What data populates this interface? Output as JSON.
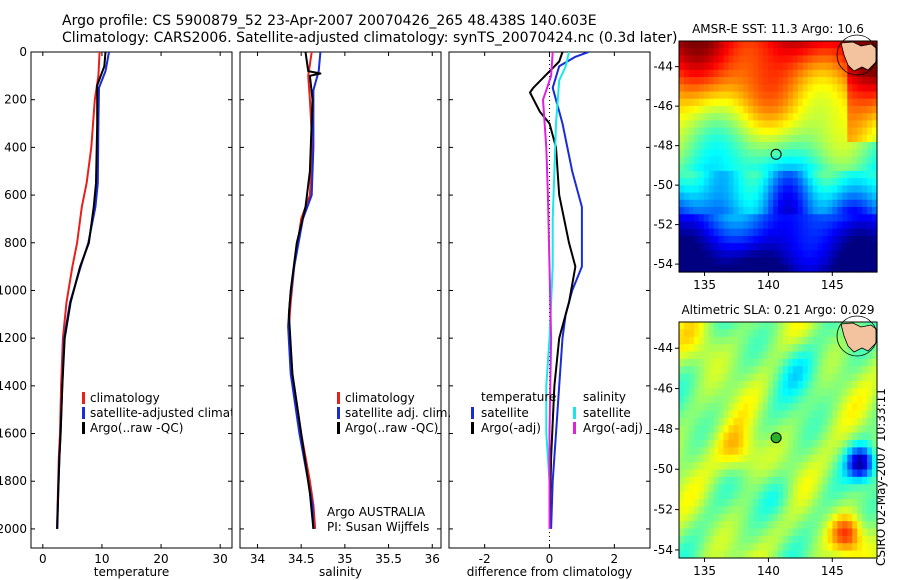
{
  "header": {
    "line1": "Argo profile: CS 5900879_52 23-Apr-2007 20070426_265 48.438S 140.603E",
    "line2": "Climatology: CARS2006. Satellite-adjusted climatology: synTS_20070424.nc (0.3d later)"
  },
  "stamp": "CSIRO 02-May-2007 10:33:11",
  "colors": {
    "red": "#e8201c",
    "blue": "#1a2bd8",
    "black": "#000000",
    "cyan": "#18e8e8",
    "magenta": "#e020e0"
  },
  "chart_data": [
    {
      "type": "line",
      "name": "temperature",
      "xlabel": "temperature",
      "xlim": [
        -2,
        32
      ],
      "ylim": [
        2080,
        0
      ],
      "xticks": [
        0,
        10,
        20,
        30
      ],
      "yticks": [
        0,
        200,
        400,
        600,
        800,
        1000,
        1200,
        1400,
        1600,
        1800,
        2000
      ],
      "series": [
        {
          "name": "climatology",
          "color": "red",
          "x": [
            9.6,
            9.4,
            8.8,
            8.2,
            7.4,
            6.6,
            5.8,
            5.0,
            4.0,
            3.4,
            3.1,
            2.9,
            2.7,
            2.6,
            2.5,
            2.4
          ],
          "y": [
            0,
            100,
            200,
            400,
            550,
            650,
            800,
            900,
            1050,
            1200,
            1400,
            1600,
            1700,
            1800,
            1900,
            2000
          ]
        },
        {
          "name": "satellite-adjusted climatology",
          "color": "blue",
          "x": [
            11.2,
            10.6,
            9.5,
            9.4,
            9.3,
            8.9,
            7.7,
            6.4,
            4.6,
            3.6,
            3.3,
            3.0,
            2.8,
            2.6,
            2.4
          ],
          "y": [
            0,
            80,
            150,
            300,
            550,
            650,
            800,
            900,
            1050,
            1200,
            1400,
            1600,
            1700,
            1850,
            2000
          ]
        },
        {
          "name": "Argo(..raw -QC)",
          "color": "black",
          "x": [
            10.6,
            10.4,
            9.2,
            9.2,
            9.0,
            8.6,
            7.8,
            6.3,
            4.7,
            3.7,
            3.3,
            3.0,
            2.8,
            2.6,
            2.45
          ],
          "y": [
            0,
            60,
            140,
            300,
            550,
            650,
            800,
            900,
            1050,
            1200,
            1400,
            1600,
            1700,
            1850,
            2000
          ]
        }
      ],
      "legend": [
        {
          "label": "climatology",
          "color": "red"
        },
        {
          "label": "satellite-adjusted climatology",
          "color": "blue"
        },
        {
          "label": "Argo(..raw -QC)",
          "color": "black"
        }
      ]
    },
    {
      "type": "line",
      "name": "salinity",
      "xlabel": "salinity",
      "xlim": [
        33.8,
        36.1
      ],
      "ylim": [
        2080,
        0
      ],
      "xticks": [
        34,
        34.5,
        35,
        35.5,
        36
      ],
      "xtick_labels": [
        "34",
        "34.5",
        "35",
        "35.5",
        "36"
      ],
      "series": [
        {
          "name": "climatology",
          "color": "red",
          "x": [
            34.62,
            34.58,
            34.6,
            34.63,
            34.6,
            34.5,
            34.42,
            34.38,
            34.36,
            34.4,
            34.5,
            34.6,
            34.64,
            34.66
          ],
          "y": [
            0,
            100,
            200,
            400,
            600,
            700,
            900,
            1050,
            1150,
            1350,
            1600,
            1800,
            1900,
            2000
          ]
        },
        {
          "name": "satellite adj. clim.",
          "color": "blue",
          "x": [
            34.72,
            34.7,
            34.64,
            34.64,
            34.62,
            34.52,
            34.42,
            34.37,
            34.35,
            34.38,
            34.48,
            34.58,
            34.63,
            34.64
          ],
          "y": [
            0,
            80,
            160,
            400,
            600,
            700,
            900,
            1050,
            1150,
            1350,
            1600,
            1800,
            1900,
            2000
          ]
        },
        {
          "name": "Argo(..raw -QC)",
          "color": "black",
          "x": [
            34.55,
            34.58,
            34.72,
            34.6,
            34.63,
            34.6,
            34.55,
            34.45,
            34.38,
            34.36,
            34.4,
            34.5,
            34.6,
            34.64
          ],
          "y": [
            0,
            80,
            90,
            100,
            200,
            500,
            650,
            800,
            1000,
            1100,
            1350,
            1600,
            1850,
            2000
          ]
        }
      ],
      "legend": [
        {
          "label": "climatology",
          "color": "red"
        },
        {
          "label": "satellite adj. clim.",
          "color": "blue"
        },
        {
          "label": "Argo(..raw -QC)",
          "color": "black"
        }
      ],
      "annotations": [
        "Argo AUSTRALIA",
        "PI: Susan Wijffels"
      ]
    },
    {
      "type": "line",
      "name": "difference",
      "xlabel": "difference from climatology",
      "xlim": [
        -3.1,
        3.1
      ],
      "ylim": [
        2080,
        0
      ],
      "xticks": [
        -2,
        0,
        2
      ],
      "zero_line": true,
      "series": [
        {
          "name": "temperature satellite",
          "color": "blue",
          "x": [
            1.2,
            0.8,
            0.3,
            0.1,
            0.4,
            0.7,
            1.0,
            1.0,
            0.7,
            0.5,
            0.4,
            0.3,
            0.2,
            0.1,
            0.05
          ],
          "y": [
            0,
            20,
            60,
            150,
            300,
            500,
            650,
            900,
            1000,
            1100,
            1200,
            1400,
            1600,
            1800,
            2000
          ]
        },
        {
          "name": "temperature Argo(-adj)",
          "color": "black",
          "x": [
            0.4,
            0.3,
            -0.5,
            -0.6,
            -0.3,
            0.0,
            0.2,
            0.3,
            0.6,
            0.8,
            0.6,
            0.3,
            0.15,
            0.05,
            0.0
          ],
          "y": [
            0,
            40,
            150,
            170,
            250,
            300,
            400,
            600,
            800,
            900,
            1050,
            1200,
            1400,
            1700,
            2000
          ]
        },
        {
          "name": "salinity satellite",
          "color": "cyan",
          "x": [
            0.6,
            0.5,
            0.3,
            0.2,
            0.15,
            0.1,
            0.1,
            0.05,
            0.0,
            -0.1,
            -0.1,
            0.0,
            0.0
          ],
          "y": [
            0,
            60,
            120,
            300,
            500,
            700,
            900,
            1050,
            1200,
            1400,
            1600,
            1800,
            2000
          ]
        },
        {
          "name": "salinity Argo(-adj)",
          "color": "magenta",
          "x": [
            0.1,
            0.05,
            -0.1,
            -0.2,
            -0.1,
            -0.05,
            0.0,
            0.05,
            0.0,
            0.0
          ],
          "y": [
            0,
            100,
            160,
            200,
            400,
            600,
            900,
            1200,
            1600,
            2000
          ]
        }
      ],
      "legend": {
        "headers": [
          "temperature",
          "salinity"
        ],
        "left": [
          {
            "label": "satellite",
            "color": "blue"
          },
          {
            "label": "Argo(-adj)",
            "color": "black"
          }
        ],
        "right": [
          {
            "label": "satellite",
            "color": "cyan"
          },
          {
            "label": "Argo(-adj)",
            "color": "magenta"
          }
        ]
      }
    },
    {
      "type": "heatmap",
      "name": "sst_map",
      "title": "AMSR-E SST: 11.3 Argo: 10.6",
      "xlim": [
        133,
        148.5
      ],
      "ylim": [
        -54.4,
        -42.7
      ],
      "xticks": [
        135,
        140,
        145
      ],
      "yticks": [
        -44,
        -46,
        -48,
        -50,
        -52,
        -54
      ],
      "marker": {
        "lon": 140.603,
        "lat": -48.438,
        "color": "none"
      }
    },
    {
      "type": "heatmap",
      "name": "sla_map",
      "title": "Altimetric SLA: 0.21 Argo: 0.029",
      "xlim": [
        133,
        148.5
      ],
      "ylim": [
        -54.4,
        -42.7
      ],
      "xticks": [
        135,
        140,
        145
      ],
      "yticks": [
        -44,
        -46,
        -48,
        -50,
        -52,
        -54
      ],
      "marker": {
        "lon": 140.603,
        "lat": -48.438,
        "color": "#2bb02b"
      }
    }
  ]
}
